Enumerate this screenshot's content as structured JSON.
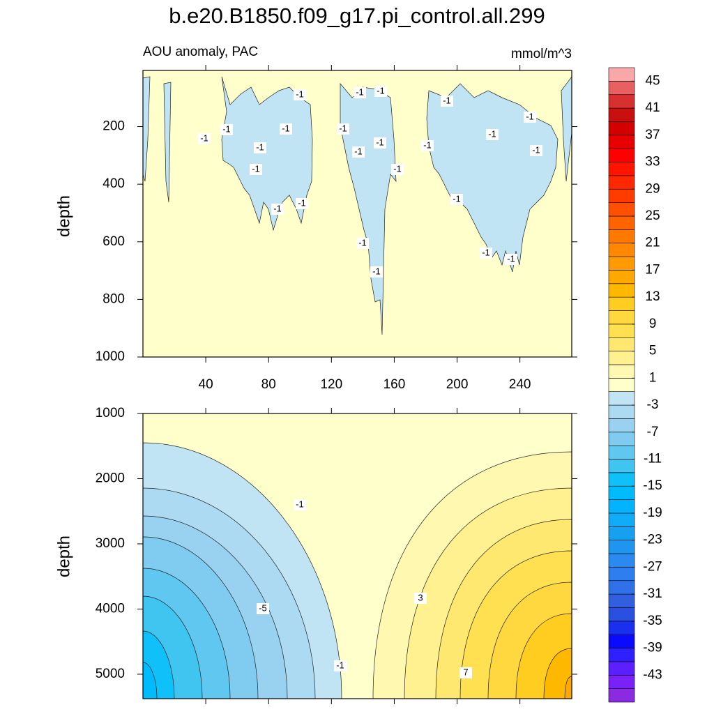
{
  "chart_data": {
    "type": "contour",
    "title": "b.e20.B1850.f09_g17.pi_control.all.299",
    "subtitle": "AOU anomaly, PAC",
    "units": "mmol/m^3",
    "panels": [
      {
        "ylabel": "depth",
        "xlim": [
          0,
          273
        ],
        "ylim": [
          5,
          1000
        ],
        "xticks": [
          40,
          80,
          120,
          160,
          200,
          240
        ],
        "yticks": [
          200,
          400,
          600,
          800,
          1000
        ],
        "contour_labels": [
          -1,
          -1,
          -1,
          -1,
          -1,
          -1,
          -1,
          -1,
          -1,
          -1,
          -1,
          -1,
          -1,
          -1,
          -1,
          -1,
          -1,
          -1,
          -1,
          -1,
          -1,
          -1,
          -1,
          -1
        ]
      },
      {
        "ylabel": "depth",
        "xlim": [
          0,
          273
        ],
        "ylim": [
          1000,
          5375
        ],
        "yticks": [
          1000,
          2000,
          3000,
          4000,
          5000
        ],
        "contour_labels": [
          -1,
          -5,
          -1,
          3,
          7
        ]
      }
    ],
    "colorbar": {
      "lim": [
        -47,
        47
      ],
      "ticks": [
        45,
        41,
        37,
        33,
        29,
        25,
        21,
        17,
        13,
        9,
        5,
        1,
        -3,
        -7,
        -11,
        -15,
        -19,
        -23,
        -27,
        -31,
        -35,
        -39,
        -43
      ],
      "colors": [
        "#8a2be2",
        "#7a20f8",
        "#5a20ff",
        "#3020ff",
        "#0a0aff",
        "#1a30f0",
        "#2a50e0",
        "#3060e0",
        "#3070e8",
        "#2e7ef0",
        "#2a8aef",
        "#1e96f0",
        "#18a0f0",
        "#10acf8",
        "#00b4ff",
        "#00bcff",
        "#10c0f8",
        "#40c4f0",
        "#60c8f0",
        "#80cbf0",
        "#98d2f0",
        "#acdaf2",
        "#c0e4f4",
        "#ffffcc",
        "#fff8b0",
        "#fff090",
        "#ffe870",
        "#ffe050",
        "#ffd840",
        "#ffcc20",
        "#ffb800",
        "#ffa800",
        "#ff9a00",
        "#ff8800",
        "#ff7800",
        "#ff6400",
        "#ff5000",
        "#ff3c00",
        "#ff2800",
        "#ff1400",
        "#ff0000",
        "#e80000",
        "#d40000",
        "#c81010",
        "#d83030",
        "#e86060",
        "#f8a8a8"
      ]
    }
  }
}
